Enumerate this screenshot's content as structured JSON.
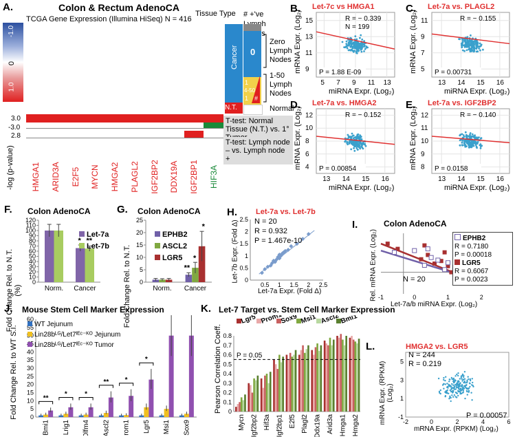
{
  "panelA": {
    "letter": "A.",
    "title": "Colon & Rectum AdenoCA",
    "subtitle": "TCGA Gene Expression (Illumina HiSeq)  N = 416",
    "tissue_type_label": "Tissue Type",
    "lymph_header": "# +'ve Lymph Nodes",
    "scale_labels": [
      "-1.0",
      "0",
      "1.0"
    ],
    "genes": [
      "HMGA1",
      "ARID3A",
      "E2F5",
      "MYCN",
      "HMGA2",
      "PLAGL2",
      "IGF2BP2",
      "DDX19A",
      "IGF2BP1",
      "HIF3A"
    ],
    "cancer_label": "Cancer",
    "nt_label": "N.T.",
    "zero_big": "0",
    "zero_text": "Zero Lymph Nodes",
    "range_text": "1-50 Lymph Nodes",
    "normal_text": "Normal",
    "small_nums": [
      "1",
      "4-50",
      "1",
      "#"
    ],
    "ylabel": "-log (p-value)",
    "y_ticks": [
      "3.0",
      "-3.0",
      "2.8"
    ],
    "ttest1": "T-test: Normal Tissue (N.T.) vs. 1° Tumor",
    "ttest2": "T-test: Lymph node – vs. Lymph node +",
    "colors": {
      "red": "#e02020",
      "blue": "#2c50a0",
      "green": "#1a8a3a",
      "cancer": "#2a88cc"
    }
  },
  "scatters": [
    {
      "letter": "B.",
      "title": "Let-7c vs HMGA1",
      "r": "R = − 0.339",
      "n": "N = 199",
      "p": "P = 1.88 E-09",
      "xlabel": "miRNA Expr. (Log₂)",
      "ylabel": "mRNA Expr. (Log₂)",
      "xticks": [
        "5",
        "7",
        "9",
        "11",
        "13"
      ],
      "yticks": [
        "9",
        "11",
        "13",
        "15"
      ]
    },
    {
      "letter": "C.",
      "title": "Let-7a vs. PLAGL2",
      "r": "R = − 0.155",
      "p": "P = 0.00731",
      "xlabel": "miRNA Expr. (Log₂)",
      "ylabel": "mRNA Expr. (Log₂)",
      "xticks": [
        "13",
        "14",
        "15",
        "16"
      ],
      "yticks": [
        "5",
        "7",
        "9",
        "11"
      ]
    },
    {
      "letter": "D.",
      "title": "Let-7a vs. HMGA2",
      "r": "R = − 0.152",
      "p": "P = 0.00854",
      "xlabel": "miRNA Expr. (Log₂)",
      "ylabel": "mRNA Expr. (Log₂)",
      "xticks": [
        "13",
        "14",
        "15",
        "16"
      ],
      "yticks": [
        "4",
        "6",
        "8",
        "10",
        "12"
      ]
    },
    {
      "letter": "E.",
      "title": "Let-7a vs. IGF2BP2",
      "r": "R = − 0.140",
      "p": "P = 0.0158",
      "xlabel": "miRNA Expr. (Log₂)",
      "ylabel": "mRNA Expr. (Log₂)",
      "xticks": [
        "13",
        "14",
        "15",
        "16"
      ],
      "yticks": [
        "8",
        "9",
        "10",
        "11",
        "12"
      ]
    }
  ],
  "panelF": {
    "letter": "F.",
    "title": "Colon AdenoCA",
    "ylabel": "Fold Change Rel. to N.T. (%)",
    "yticks": [
      "0",
      "10",
      "20",
      "30",
      "40",
      "50",
      "60",
      "70",
      "80",
      "90",
      "100",
      "110",
      "120"
    ],
    "categories": [
      "Norm.",
      "Cancer"
    ],
    "legend": [
      "Let-7a",
      "Let-7b"
    ],
    "stars": [
      "*",
      "**"
    ]
  },
  "panelG": {
    "letter": "G.",
    "title": "Colon AdenoCA",
    "ylabel": "Fold Change Rel. to N.T.",
    "yticks": [
      "0",
      "5",
      "10",
      "15",
      "20",
      "25"
    ],
    "categories": [
      "Norm.",
      "Cancer"
    ],
    "legend": [
      "EPHB2",
      "ASCL2",
      "LGR5"
    ],
    "stars": [
      "**",
      "*",
      "*"
    ]
  },
  "panelH": {
    "letter": "H.",
    "title": "Let-7a vs. Let-7b",
    "n": "N = 20",
    "r": "R = 0.932",
    "p": "P = 1.467e-10",
    "xlabel": "Let-7a Expr. (Fold Δ)",
    "ylabel": "Let-7b Expr. (Fold Δ)",
    "xticks": [
      "0.5",
      "1",
      "1.5",
      "2",
      "2.5"
    ],
    "yticks": [
      "0",
      "0.5",
      "1",
      "1.5",
      "2",
      "2.5"
    ]
  },
  "panelI": {
    "letter": "I.",
    "title": "Colon AdenoCA",
    "n": "N = 20",
    "ephb2": "EPHB2",
    "ephb2_r": "R = 0.7180",
    "ephb2_p": "P = 0.00018",
    "lgr5": "LGR5",
    "lgr5_r": "R = 0.6067",
    "lgr5_p": "P = 0.0023",
    "xlabel": "Let-7a/b miRNA Expr. (Log₂)",
    "ylabel": "Rel. mRNA Expr. (Log₂)",
    "xticks": [
      "-1",
      "0",
      "1",
      "2"
    ],
    "yticks": [
      "-3",
      "-2",
      "-1",
      "0",
      "1",
      "2",
      "3",
      "4"
    ]
  },
  "panelJ": {
    "letter": "J.",
    "title": "Mouse Stem Cell Marker Expression",
    "ylabel": "Fold Change Rel. to WT S.I.",
    "yticks": [
      "0",
      "5",
      "10",
      "15",
      "20",
      "25",
      "30",
      "35",
      "40",
      "45",
      "50",
      "55",
      "60"
    ],
    "legend": [
      "WT Jejunum",
      "Lin28bᴸᴳ/Let7ᴵᴱᶜ⁻ᴷᴼ Jejunum",
      "Lin28bᴸᴳ/Let7ᴵᴱᶜ⁻ᴷᴼ Tumor"
    ],
    "genes": [
      "Bmi1",
      "Lrig1",
      "Olfm4",
      "Ascl2",
      "Prom1",
      "Lgr5",
      "Msi1",
      "Sox9"
    ]
  },
  "panelK": {
    "letter": "K.",
    "title": "Let-7 Target vs. Stem Cell Marker Expression",
    "ylabel": "Pearson Correlation Coeff.",
    "yticks": [
      "0",
      "0.1",
      "0.2",
      "0.3",
      "0.4",
      "0.5",
      "0.6",
      "0.7",
      "0.8"
    ],
    "pline": "P = 0.05",
    "markers": [
      "Lgr5",
      "Prom1",
      "Sox9",
      "Msi1",
      "Ascl2",
      "Bmi1"
    ],
    "genes": [
      "Mycn",
      "Igf2bp2",
      "Hif3a",
      "Igf2bp1",
      "E2f5",
      "Plagl2",
      "Ddx19a",
      "Arid3a",
      "Hmga1",
      "Hmga2"
    ]
  },
  "panelL": {
    "letter": "L.",
    "title": "HMGA2 vs. LGR5",
    "n": "N = 244",
    "r": "R = 0.219",
    "p": "P = 0.00057",
    "xlabel": "mRNA Expr. (RPKM) (Log₂)",
    "ylabel": "mRNA Expr. (RPKM) (Log₂)",
    "xticks": [
      "-2",
      "0",
      "2",
      "4",
      "6"
    ],
    "yticks": [
      "-1",
      "1",
      "3",
      "5"
    ]
  },
  "chart_data": [
    {
      "type": "scatter",
      "title": "Let-7c vs HMGA1",
      "n": 199,
      "r": -0.339,
      "xlim": [
        5,
        13
      ],
      "ylim": [
        9,
        15
      ],
      "xlabel": "miRNA Expr. (Log2)",
      "ylabel": "mRNA Expr. (Log2)",
      "fit_line": [
        [
          5,
          13.2
        ],
        [
          13,
          11.6
        ]
      ]
    },
    {
      "type": "scatter",
      "title": "Let-7a vs. PLAGL2",
      "r": -0.155,
      "xlim": [
        12.5,
        16.5
      ],
      "ylim": [
        5,
        11
      ],
      "fit_line": [
        [
          12.5,
          9.0
        ],
        [
          16.5,
          8.1
        ]
      ]
    },
    {
      "type": "scatter",
      "title": "Let-7a vs. HMGA2",
      "r": -0.152,
      "xlim": [
        12.5,
        16.5
      ],
      "ylim": [
        4,
        12
      ],
      "fit_line": [
        [
          12.5,
          8.6
        ],
        [
          16.5,
          7.6
        ]
      ]
    },
    {
      "type": "scatter",
      "title": "Let-7a vs. IGF2BP2",
      "r": -0.14,
      "xlim": [
        12.5,
        16.5
      ],
      "ylim": [
        8,
        12
      ],
      "fit_line": [
        [
          12.5,
          10.3
        ],
        [
          16.5,
          9.9
        ]
      ]
    },
    {
      "type": "bar",
      "title": "Colon AdenoCA (F)",
      "categories": [
        "Norm.",
        "Cancer"
      ],
      "series": [
        {
          "name": "Let-7a",
          "values": [
            100,
            66
          ],
          "err": [
            12,
            6
          ]
        },
        {
          "name": "Let-7b",
          "values": [
            100,
            65
          ],
          "err": [
            12,
            5
          ]
        }
      ],
      "ylim": [
        0,
        120
      ],
      "ylabel": "Fold Change Rel. to N.T. (%)"
    },
    {
      "type": "bar",
      "title": "Colon AdenoCA (G)",
      "categories": [
        "Norm.",
        "Cancer"
      ],
      "series": [
        {
          "name": "EPHB2",
          "values": [
            1,
            3
          ],
          "err": [
            0.5,
            0.8
          ]
        },
        {
          "name": "ASCL2",
          "values": [
            1,
            5.8
          ],
          "err": [
            0.4,
            2.2
          ]
        },
        {
          "name": "LGR5",
          "values": [
            1,
            14.5
          ],
          "err": [
            0.5,
            6
          ]
        }
      ],
      "ylim": [
        0,
        25
      ],
      "ylabel": "Fold Change Rel. to N.T."
    },
    {
      "type": "scatter",
      "title": "Let-7a vs. Let-7b",
      "n": 20,
      "r": 0.932,
      "xlim": [
        0,
        2.5
      ],
      "ylim": [
        0,
        2.5
      ],
      "x": [
        0.4,
        0.5,
        0.6,
        0.7,
        0.75,
        0.8,
        0.85,
        0.9,
        0.95,
        1.0,
        1.0,
        1.05,
        1.1,
        1.15,
        1.2,
        1.3,
        1.4,
        1.6,
        1.8,
        2.0
      ],
      "y": [
        0.3,
        0.45,
        0.55,
        0.6,
        0.7,
        0.8,
        0.75,
        0.85,
        0.95,
        0.9,
        1.05,
        1.0,
        1.1,
        1.15,
        1.2,
        1.25,
        1.4,
        1.5,
        1.7,
        1.9
      ]
    },
    {
      "type": "scatter",
      "title": "Colon AdenoCA (I)",
      "n": 20,
      "series": [
        {
          "name": "EPHB2",
          "r": 0.718
        },
        {
          "name": "LGR5",
          "r": 0.6067
        }
      ],
      "xlim": [
        -1,
        2.2
      ],
      "ylim": [
        -3,
        4
      ]
    },
    {
      "type": "bar",
      "title": "Mouse Stem Cell Marker Expression",
      "categories": [
        "Bmi1",
        "Lrig1",
        "Olfm4",
        "Ascl2",
        "Prom1",
        "Lgr5",
        "Msi1",
        "Sox9"
      ],
      "series": [
        {
          "name": "WT Jejunum",
          "values": [
            1,
            1,
            1,
            1,
            1,
            1,
            1,
            1
          ]
        },
        {
          "name": "Lin28b/Let7 Jejunum",
          "values": [
            1.5,
            2,
            1.5,
            2.5,
            1.2,
            6,
            5,
            2
          ]
        },
        {
          "name": "Lin28b/Let7 Tumor",
          "values": [
            4,
            6,
            6,
            12,
            13,
            23,
            50,
            50
          ]
        }
      ],
      "ylim": [
        0,
        60
      ]
    },
    {
      "type": "bar",
      "title": "Let-7 Target vs. Stem Cell Marker Expression",
      "categories": [
        "Mycn",
        "Igf2bp2",
        "Hif3a",
        "Igf2bp1",
        "E2f5",
        "Plagl2",
        "Ddx19a",
        "Arid3a",
        "Hmga1",
        "Hmga2"
      ],
      "series": [
        {
          "name": "Lgr5",
          "values": [
            0.05,
            0.3,
            0.35,
            0.55,
            0.6,
            0.6,
            0.65,
            0.75,
            0.8,
            0.78
          ]
        },
        {
          "name": "Prom1",
          "values": [
            0.08,
            0.28,
            0.25,
            0.5,
            0.55,
            0.65,
            0.6,
            0.72,
            0.78,
            0.8
          ]
        },
        {
          "name": "Sox9",
          "values": [
            0.1,
            0.2,
            0.38,
            0.45,
            0.62,
            0.7,
            0.68,
            0.7,
            0.82,
            0.76
          ]
        },
        {
          "name": "Msi1",
          "values": [
            0.15,
            0.35,
            0.4,
            0.6,
            0.58,
            0.62,
            0.72,
            0.78,
            0.76,
            0.74
          ]
        },
        {
          "name": "Ascl2",
          "values": [
            0.12,
            0.33,
            0.3,
            0.52,
            0.6,
            0.66,
            0.64,
            0.7,
            0.7,
            0.72
          ]
        },
        {
          "name": "Bmi1",
          "values": [
            0.18,
            0.38,
            0.42,
            0.58,
            0.65,
            0.7,
            0.7,
            0.76,
            0.8,
            0.77
          ]
        }
      ],
      "ylim": [
        0,
        0.8
      ],
      "threshold": 0.55
    },
    {
      "type": "scatter",
      "title": "HMGA2 vs. LGR5",
      "n": 244,
      "r": 0.219,
      "xlim": [
        -2,
        6
      ],
      "ylim": [
        -1,
        6
      ]
    }
  ]
}
